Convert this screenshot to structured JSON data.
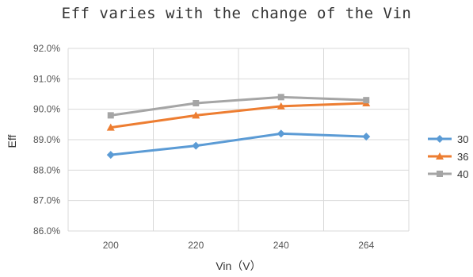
{
  "chart_data": {
    "type": "line",
    "title": "Eff varies with the change of the Vin",
    "xlabel": "Vin（V）",
    "ylabel": "Eff",
    "categories": [
      "200",
      "220",
      "240",
      "264"
    ],
    "ylim": [
      0.86,
      0.92
    ],
    "yticks": [
      0.86,
      0.87,
      0.88,
      0.89,
      0.9,
      0.91,
      0.92
    ],
    "ytick_labels": [
      "86.0%",
      "87.0%",
      "88.0%",
      "89.0%",
      "90.0%",
      "91.0%",
      "92.0%"
    ],
    "grid": true,
    "legend_position": "right",
    "series": [
      {
        "name": "30",
        "values": [
          0.885,
          0.888,
          0.892,
          0.891
        ],
        "color": "#5b9bd5",
        "marker": "diamond"
      },
      {
        "name": "36",
        "values": [
          0.894,
          0.898,
          0.901,
          0.902
        ],
        "color": "#ed7d31",
        "marker": "triangle"
      },
      {
        "name": "40",
        "values": [
          0.898,
          0.902,
          0.904,
          0.903
        ],
        "color": "#a5a5a5",
        "marker": "square"
      }
    ]
  }
}
